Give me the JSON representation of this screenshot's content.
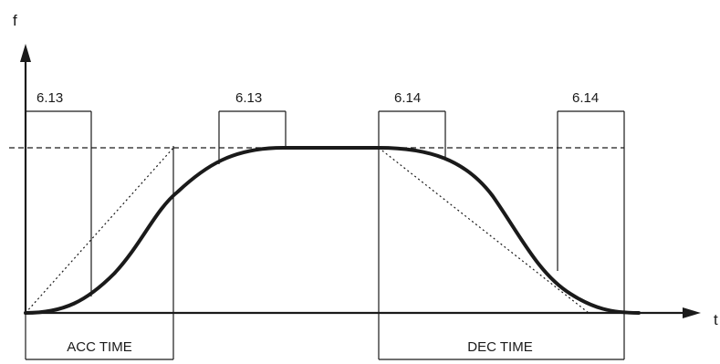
{
  "axes": {
    "y_label": "f",
    "x_label": "t"
  },
  "s_curve_labels": {
    "accel_start": "6.13",
    "accel_end": "6.13",
    "decel_start": "6.14",
    "decel_end": "6.14"
  },
  "time_labels": {
    "acc": "ACC TIME",
    "dec": "DEC TIME"
  }
}
